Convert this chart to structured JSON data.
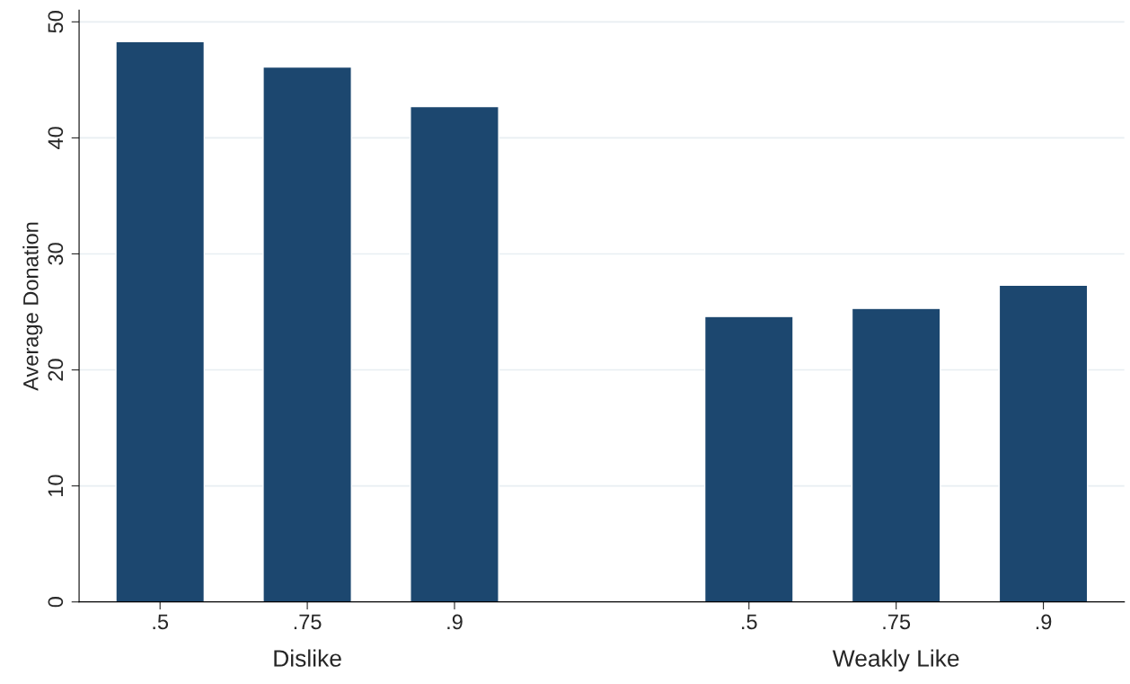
{
  "chart_data": {
    "type": "bar",
    "ylabel": "Average Donation",
    "categories": [
      ".5",
      ".75",
      ".9",
      null,
      ".5",
      ".75",
      ".9"
    ],
    "values": [
      48.3,
      46.1,
      42.7,
      null,
      24.6,
      25.3,
      27.3
    ],
    "color": "#1c476f",
    "ylim": [
      0,
      51
    ],
    "yticks": [
      0,
      10,
      20,
      30,
      40,
      50
    ],
    "grid": "y",
    "annotations": [
      "Dislike",
      "Weakly Like"
    ]
  }
}
